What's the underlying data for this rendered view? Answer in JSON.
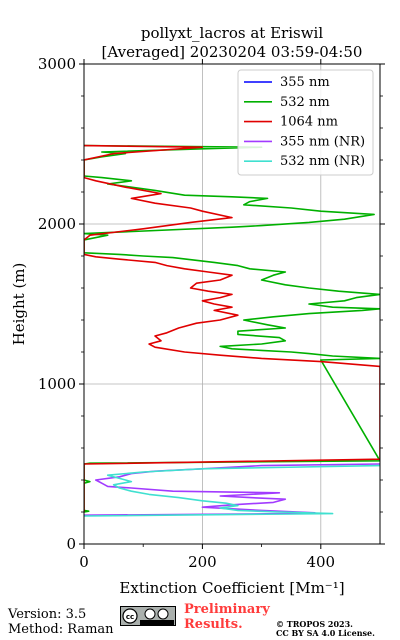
{
  "chart_data": {
    "type": "line",
    "title": "pollyxt_lacros at Eriswil",
    "subtitle": "[Averaged] 20230204 03:59-04:50",
    "xlabel": "Extinction Coefficient [Mm⁻¹]",
    "ylabel": "Height (m)",
    "xlim": [
      0,
      500
    ],
    "ylim": [
      0,
      3000
    ],
    "xticks": [
      0,
      200,
      400
    ],
    "yticks": [
      0,
      1000,
      2000,
      3000
    ],
    "grid": true,
    "legend_position": "top-right",
    "series": [
      {
        "name": "355 nm",
        "color": "#0000ff",
        "points": []
      },
      {
        "name": "532 nm",
        "color": "#00b000",
        "points": [
          [
            0,
            200
          ],
          [
            8,
            205
          ],
          [
            0,
            210
          ],
          [
            0,
            380
          ],
          [
            10,
            390
          ],
          [
            0,
            400
          ],
          [
            0,
            500
          ],
          [
            10,
            505
          ],
          [
            500,
            520
          ],
          [
            400,
            1150
          ],
          [
            500,
            1160
          ],
          [
            420,
            1175
          ],
          [
            380,
            1190
          ],
          [
            350,
            1200
          ],
          [
            300,
            1210
          ],
          [
            250,
            1220
          ],
          [
            230,
            1235
          ],
          [
            300,
            1250
          ],
          [
            340,
            1270
          ],
          [
            330,
            1290
          ],
          [
            260,
            1310
          ],
          [
            260,
            1330
          ],
          [
            340,
            1350
          ],
          [
            310,
            1370
          ],
          [
            270,
            1400
          ],
          [
            320,
            1420
          ],
          [
            380,
            1440
          ],
          [
            470,
            1460
          ],
          [
            500,
            1470
          ],
          [
            420,
            1480
          ],
          [
            380,
            1500
          ],
          [
            440,
            1520
          ],
          [
            460,
            1540
          ],
          [
            500,
            1560
          ],
          [
            430,
            1580
          ],
          [
            380,
            1600
          ],
          [
            340,
            1620
          ],
          [
            300,
            1650
          ],
          [
            320,
            1680
          ],
          [
            340,
            1700
          ],
          [
            280,
            1720
          ],
          [
            260,
            1740
          ],
          [
            220,
            1760
          ],
          [
            150,
            1790
          ],
          [
            100,
            1800
          ],
          [
            60,
            1810
          ],
          [
            0,
            1820
          ],
          [
            0,
            1900
          ],
          [
            40,
            1930
          ],
          [
            0,
            1940
          ],
          [
            250,
            1980
          ],
          [
            300,
            1990
          ],
          [
            380,
            2010
          ],
          [
            440,
            2030
          ],
          [
            490,
            2060
          ],
          [
            400,
            2080
          ],
          [
            350,
            2100
          ],
          [
            270,
            2120
          ],
          [
            280,
            2140
          ],
          [
            310,
            2160
          ],
          [
            250,
            2170
          ],
          [
            170,
            2180
          ],
          [
            120,
            2210
          ],
          [
            80,
            2230
          ],
          [
            40,
            2250
          ],
          [
            80,
            2270
          ],
          [
            30,
            2290
          ],
          [
            0,
            2300
          ],
          [
            0,
            2400
          ],
          [
            30,
            2420
          ],
          [
            70,
            2440
          ],
          [
            30,
            2450
          ],
          [
            200,
            2470
          ],
          [
            300,
            2480
          ],
          [
            0,
            2490
          ]
        ]
      },
      {
        "name": "1064 nm",
        "color": "#e00000",
        "points": [
          [
            0,
            200
          ],
          [
            0,
            500
          ],
          [
            500,
            530
          ],
          [
            500,
            1110
          ],
          [
            400,
            1140
          ],
          [
            300,
            1160
          ],
          [
            230,
            1180
          ],
          [
            170,
            1200
          ],
          [
            120,
            1230
          ],
          [
            110,
            1250
          ],
          [
            130,
            1270
          ],
          [
            120,
            1300
          ],
          [
            140,
            1320
          ],
          [
            160,
            1350
          ],
          [
            190,
            1380
          ],
          [
            230,
            1400
          ],
          [
            260,
            1430
          ],
          [
            220,
            1460
          ],
          [
            250,
            1480
          ],
          [
            220,
            1500
          ],
          [
            200,
            1520
          ],
          [
            230,
            1540
          ],
          [
            250,
            1560
          ],
          [
            210,
            1580
          ],
          [
            180,
            1600
          ],
          [
            190,
            1630
          ],
          [
            230,
            1650
          ],
          [
            250,
            1680
          ],
          [
            210,
            1700
          ],
          [
            170,
            1720
          ],
          [
            140,
            1740
          ],
          [
            120,
            1760
          ],
          [
            60,
            1780
          ],
          [
            20,
            1795
          ],
          [
            0,
            1810
          ],
          [
            0,
            1900
          ],
          [
            10,
            1930
          ],
          [
            100,
            1970
          ],
          [
            180,
            2010
          ],
          [
            250,
            2040
          ],
          [
            200,
            2080
          ],
          [
            180,
            2100
          ],
          [
            120,
            2130
          ],
          [
            80,
            2160
          ],
          [
            130,
            2190
          ],
          [
            70,
            2230
          ],
          [
            20,
            2270
          ],
          [
            0,
            2290
          ],
          [
            0,
            2400
          ],
          [
            50,
            2440
          ],
          [
            200,
            2480
          ],
          [
            0,
            2490
          ]
        ]
      },
      {
        "name": "355 nm (NR)",
        "color": "#a23bff",
        "points": [
          [
            0,
            180
          ],
          [
            350,
            190
          ],
          [
            390,
            195
          ],
          [
            300,
            210
          ],
          [
            250,
            220
          ],
          [
            200,
            230
          ],
          [
            250,
            245
          ],
          [
            320,
            260
          ],
          [
            340,
            280
          ],
          [
            280,
            290
          ],
          [
            230,
            300
          ],
          [
            330,
            320
          ],
          [
            150,
            330
          ],
          [
            80,
            350
          ],
          [
            40,
            360
          ],
          [
            30,
            380
          ],
          [
            20,
            400
          ],
          [
            60,
            420
          ],
          [
            80,
            440
          ],
          [
            120,
            455
          ],
          [
            200,
            470
          ],
          [
            300,
            490
          ],
          [
            500,
            500
          ]
        ]
      },
      {
        "name": "532 nm (NR)",
        "color": "#40e0d0",
        "points": [
          [
            0,
            175
          ],
          [
            420,
            190
          ],
          [
            330,
            200
          ],
          [
            260,
            210
          ],
          [
            230,
            225
          ],
          [
            260,
            240
          ],
          [
            240,
            255
          ],
          [
            200,
            270
          ],
          [
            160,
            290
          ],
          [
            110,
            310
          ],
          [
            80,
            330
          ],
          [
            60,
            350
          ],
          [
            50,
            370
          ],
          [
            80,
            390
          ],
          [
            60,
            410
          ],
          [
            40,
            430
          ],
          [
            100,
            450
          ],
          [
            200,
            470
          ],
          [
            500,
            490
          ]
        ]
      }
    ]
  },
  "footer": {
    "version": "Version: 3.5",
    "method": "Method: Raman",
    "license_badge": "cc BY SA",
    "preliminary_line1": "Preliminary",
    "preliminary_line2": "Results.",
    "copyright_line1": "© TROPOS 2023.",
    "copyright_line2": "CC BY SA 4.0 License."
  }
}
